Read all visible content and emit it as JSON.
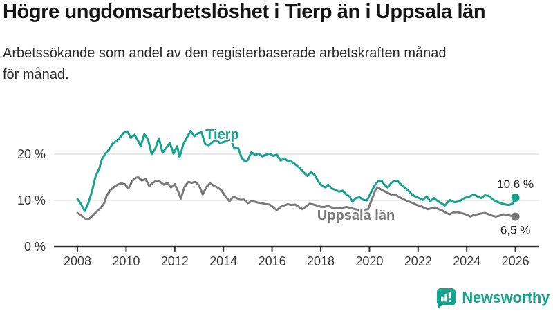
{
  "header": {
    "title": "Högre ungdomsarbetslöshet i Tierp än i Uppsala län",
    "subtitle": "Arbetssökande som andel av den registerbaserade arbetskraften månad för månad."
  },
  "footer": {
    "brand": "Newsworthy",
    "brand_color": "#17a28e",
    "logo_icon": "bar-chart-speech-bubble-icon"
  },
  "chart_data": {
    "type": "line",
    "title": "Högre ungdomsarbetslöshet i Tierp än i Uppsala län",
    "xlabel": "",
    "ylabel": "",
    "y_unit": "%",
    "x_range": [
      2008,
      2026
    ],
    "ylim": [
      0,
      27
    ],
    "grid": "horizontal-only",
    "legend_position": "inline-labels",
    "x_ticks": [
      2008,
      2010,
      2012,
      2014,
      2016,
      2018,
      2020,
      2022,
      2024,
      2026
    ],
    "y_ticks": [
      {
        "value": 0,
        "label": "0 %"
      },
      {
        "value": 10,
        "label": "10 %"
      },
      {
        "value": 20,
        "label": "20 %"
      }
    ],
    "colors": {
      "grid": "#dcdcdc",
      "axis": "#323232",
      "tick_text": "#3c3c3c",
      "value_text": "#262626"
    },
    "series": [
      {
        "name": "Tierp",
        "color": "#16a28d",
        "end_label": "10,6 %",
        "end_value": 10.6,
        "label_pos": {
          "year": 2013.95,
          "value": 24.3
        },
        "end_label_offset": [
          0,
          -14
        ],
        "points": [
          [
            2008.0,
            10.3
          ],
          [
            2008.15,
            9.2
          ],
          [
            2008.3,
            7.7
          ],
          [
            2008.45,
            9.4
          ],
          [
            2008.6,
            12.0
          ],
          [
            2008.75,
            15.3
          ],
          [
            2008.9,
            16.9
          ],
          [
            2009.0,
            18.8
          ],
          [
            2009.15,
            20.1
          ],
          [
            2009.3,
            21.0
          ],
          [
            2009.45,
            22.3
          ],
          [
            2009.6,
            22.8
          ],
          [
            2009.75,
            23.6
          ],
          [
            2009.9,
            24.6
          ],
          [
            2010.05,
            24.9
          ],
          [
            2010.2,
            23.5
          ],
          [
            2010.35,
            24.2
          ],
          [
            2010.5,
            22.8
          ],
          [
            2010.6,
            21.7
          ],
          [
            2010.75,
            24.3
          ],
          [
            2010.9,
            23.2
          ],
          [
            2011.05,
            20.0
          ],
          [
            2011.2,
            21.2
          ],
          [
            2011.35,
            23.4
          ],
          [
            2011.5,
            20.3
          ],
          [
            2011.65,
            21.4
          ],
          [
            2011.8,
            22.4
          ],
          [
            2011.95,
            20.1
          ],
          [
            2012.1,
            21.7
          ],
          [
            2012.2,
            19.3
          ],
          [
            2012.35,
            22.1
          ],
          [
            2012.5,
            23.6
          ],
          [
            2012.65,
            25.0
          ],
          [
            2012.8,
            23.9
          ],
          [
            2012.95,
            24.5
          ],
          [
            2013.1,
            24.7
          ],
          [
            2013.25,
            22.2
          ],
          [
            2013.4,
            21.9
          ],
          [
            2013.55,
            22.6
          ],
          [
            2013.7,
            23.1
          ],
          [
            2013.85,
            22.4
          ],
          [
            2014.0,
            22.6
          ],
          [
            2014.15,
            22.9
          ],
          [
            2014.3,
            23.2
          ],
          [
            2014.45,
            21.2
          ],
          [
            2014.6,
            21.4
          ],
          [
            2014.75,
            19.2
          ],
          [
            2014.9,
            18.4
          ],
          [
            2015.0,
            18.7
          ],
          [
            2015.15,
            20.4
          ],
          [
            2015.3,
            19.8
          ],
          [
            2015.45,
            20.1
          ],
          [
            2015.6,
            19.5
          ],
          [
            2015.75,
            19.9
          ],
          [
            2015.9,
            20.1
          ],
          [
            2016.05,
            19.6
          ],
          [
            2016.2,
            19.9
          ],
          [
            2016.35,
            18.6
          ],
          [
            2016.5,
            19.1
          ],
          [
            2016.65,
            18.5
          ],
          [
            2016.8,
            18.4
          ],
          [
            2016.95,
            17.8
          ],
          [
            2017.1,
            17.2
          ],
          [
            2017.25,
            16.3
          ],
          [
            2017.45,
            15.3
          ],
          [
            2017.6,
            16.1
          ],
          [
            2017.75,
            15.5
          ],
          [
            2017.9,
            14.1
          ],
          [
            2018.05,
            13.1
          ],
          [
            2018.2,
            12.8
          ],
          [
            2018.3,
            13.4
          ],
          [
            2018.45,
            12.6
          ],
          [
            2018.6,
            12.3
          ],
          [
            2018.75,
            11.9
          ],
          [
            2018.9,
            12.1
          ],
          [
            2019.05,
            11.3
          ],
          [
            2019.2,
            10.8
          ],
          [
            2019.3,
            9.7
          ],
          [
            2019.45,
            10.5
          ],
          [
            2019.6,
            10.7
          ],
          [
            2019.75,
            10.1
          ],
          [
            2019.9,
            10.0
          ],
          [
            2020.05,
            11.6
          ],
          [
            2020.2,
            13.1
          ],
          [
            2020.35,
            14.1
          ],
          [
            2020.5,
            14.3
          ],
          [
            2020.6,
            13.5
          ],
          [
            2020.75,
            12.8
          ],
          [
            2020.9,
            13.8
          ],
          [
            2021.0,
            14.1
          ],
          [
            2021.15,
            14.3
          ],
          [
            2021.3,
            13.4
          ],
          [
            2021.45,
            12.8
          ],
          [
            2021.6,
            12.1
          ],
          [
            2021.75,
            11.3
          ],
          [
            2021.9,
            10.8
          ],
          [
            2022.05,
            10.5
          ],
          [
            2022.2,
            10.1
          ],
          [
            2022.35,
            10.9
          ],
          [
            2022.5,
            9.8
          ],
          [
            2022.65,
            10.5
          ],
          [
            2022.8,
            9.9
          ],
          [
            2022.95,
            9.4
          ],
          [
            2023.1,
            8.9
          ],
          [
            2023.3,
            10.1
          ],
          [
            2023.5,
            9.6
          ],
          [
            2023.7,
            9.8
          ],
          [
            2023.9,
            10.5
          ],
          [
            2024.1,
            10.8
          ],
          [
            2024.3,
            11.3
          ],
          [
            2024.45,
            10.8
          ],
          [
            2024.6,
            10.5
          ],
          [
            2024.75,
            11.1
          ],
          [
            2024.9,
            11.0
          ],
          [
            2025.05,
            10.3
          ],
          [
            2025.2,
            9.8
          ],
          [
            2025.4,
            9.4
          ],
          [
            2025.6,
            9.1
          ],
          [
            2025.75,
            9.0
          ],
          [
            2025.9,
            9.4
          ],
          [
            2026.0,
            10.6
          ]
        ]
      },
      {
        "name": "Uppsala län",
        "color": "#7a7a7a",
        "end_label": "6,5 %",
        "end_value": 6.5,
        "label_pos": {
          "year": 2019.45,
          "value": 6.9
        },
        "end_label_offset": [
          0,
          25
        ],
        "points": [
          [
            2008.0,
            7.3
          ],
          [
            2008.15,
            6.8
          ],
          [
            2008.3,
            6.1
          ],
          [
            2008.45,
            5.9
          ],
          [
            2008.6,
            6.6
          ],
          [
            2008.75,
            7.4
          ],
          [
            2008.9,
            8.1
          ],
          [
            2009.0,
            8.7
          ],
          [
            2009.1,
            9.4
          ],
          [
            2009.2,
            11.0
          ],
          [
            2009.35,
            12.2
          ],
          [
            2009.5,
            12.9
          ],
          [
            2009.65,
            13.4
          ],
          [
            2009.8,
            13.7
          ],
          [
            2009.95,
            13.5
          ],
          [
            2010.1,
            12.6
          ],
          [
            2010.25,
            14.2
          ],
          [
            2010.4,
            14.9
          ],
          [
            2010.5,
            15.0
          ],
          [
            2010.65,
            14.3
          ],
          [
            2010.8,
            14.6
          ],
          [
            2010.95,
            13.1
          ],
          [
            2011.1,
            13.8
          ],
          [
            2011.25,
            14.3
          ],
          [
            2011.4,
            14.0
          ],
          [
            2011.55,
            13.4
          ],
          [
            2011.7,
            13.8
          ],
          [
            2011.85,
            12.8
          ],
          [
            2012.0,
            13.5
          ],
          [
            2012.15,
            11.8
          ],
          [
            2012.25,
            10.4
          ],
          [
            2012.4,
            12.9
          ],
          [
            2012.55,
            14.0
          ],
          [
            2012.7,
            13.8
          ],
          [
            2012.85,
            14.0
          ],
          [
            2013.0,
            13.2
          ],
          [
            2013.15,
            11.3
          ],
          [
            2013.3,
            12.9
          ],
          [
            2013.45,
            13.7
          ],
          [
            2013.6,
            13.2
          ],
          [
            2013.75,
            12.8
          ],
          [
            2013.9,
            12.3
          ],
          [
            2014.05,
            11.1
          ],
          [
            2014.25,
            9.8
          ],
          [
            2014.4,
            10.8
          ],
          [
            2014.55,
            10.5
          ],
          [
            2014.7,
            10.1
          ],
          [
            2014.85,
            10.2
          ],
          [
            2015.0,
            9.4
          ],
          [
            2015.15,
            9.8
          ],
          [
            2015.3,
            9.7
          ],
          [
            2015.45,
            9.5
          ],
          [
            2015.6,
            9.4
          ],
          [
            2015.75,
            9.2
          ],
          [
            2015.9,
            9.1
          ],
          [
            2016.05,
            8.5
          ],
          [
            2016.2,
            7.9
          ],
          [
            2016.35,
            8.6
          ],
          [
            2016.5,
            8.9
          ],
          [
            2016.65,
            9.2
          ],
          [
            2016.8,
            9.0
          ],
          [
            2016.95,
            9.1
          ],
          [
            2017.1,
            8.6
          ],
          [
            2017.25,
            8.1
          ],
          [
            2017.4,
            8.7
          ],
          [
            2017.55,
            9.3
          ],
          [
            2017.7,
            9.1
          ],
          [
            2017.85,
            8.9
          ],
          [
            2018.0,
            8.6
          ],
          [
            2018.15,
            8.6
          ],
          [
            2018.3,
            8.8
          ],
          [
            2018.45,
            8.5
          ],
          [
            2018.6,
            8.4
          ],
          [
            2018.75,
            8.3
          ],
          [
            2018.9,
            8.4
          ],
          [
            2019.05,
            8.6
          ],
          [
            2019.2,
            8.4
          ],
          [
            2019.35,
            8.2
          ],
          [
            2019.5,
            8.0
          ],
          [
            2019.65,
            7.9
          ],
          [
            2019.8,
            8.0
          ],
          [
            2019.95,
            8.1
          ],
          [
            2020.1,
            10.2
          ],
          [
            2020.25,
            12.3
          ],
          [
            2020.35,
            12.8
          ],
          [
            2020.5,
            12.3
          ],
          [
            2020.65,
            11.9
          ],
          [
            2020.8,
            11.5
          ],
          [
            2020.95,
            11.1
          ],
          [
            2021.05,
            11.3
          ],
          [
            2021.2,
            10.8
          ],
          [
            2021.35,
            10.4
          ],
          [
            2021.5,
            10.0
          ],
          [
            2021.65,
            9.7
          ],
          [
            2021.8,
            9.4
          ],
          [
            2021.95,
            9.0
          ],
          [
            2022.1,
            8.8
          ],
          [
            2022.25,
            8.4
          ],
          [
            2022.4,
            8.1
          ],
          [
            2022.55,
            8.3
          ],
          [
            2022.7,
            8.5
          ],
          [
            2022.85,
            8.1
          ],
          [
            2023.0,
            7.8
          ],
          [
            2023.15,
            7.3
          ],
          [
            2023.3,
            7.0
          ],
          [
            2023.45,
            7.4
          ],
          [
            2023.6,
            7.5
          ],
          [
            2023.75,
            7.3
          ],
          [
            2023.9,
            7.1
          ],
          [
            2024.05,
            6.8
          ],
          [
            2024.15,
            6.5
          ],
          [
            2024.3,
            6.9
          ],
          [
            2024.45,
            7.0
          ],
          [
            2024.6,
            7.2
          ],
          [
            2024.75,
            7.3
          ],
          [
            2024.9,
            7.0
          ],
          [
            2025.05,
            6.7
          ],
          [
            2025.2,
            6.5
          ],
          [
            2025.35,
            6.7
          ],
          [
            2025.5,
            7.0
          ],
          [
            2025.65,
            6.9
          ],
          [
            2025.8,
            6.7
          ],
          [
            2026.0,
            6.5
          ]
        ]
      }
    ]
  }
}
